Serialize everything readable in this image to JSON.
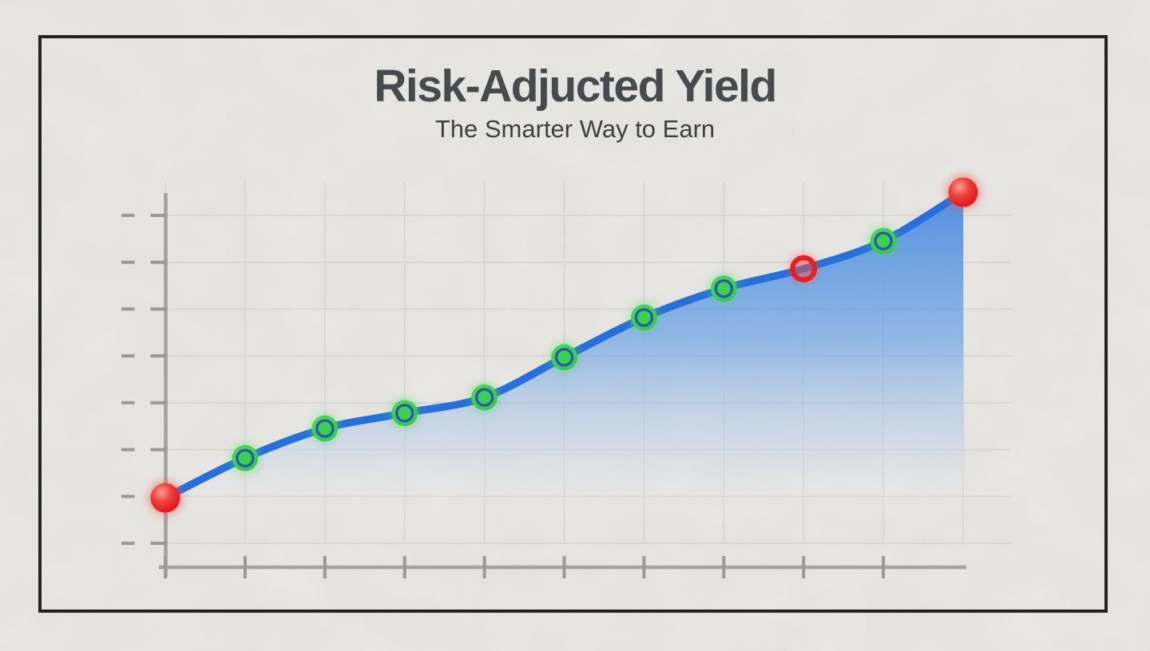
{
  "page": {
    "background_color": "#f3f1ee",
    "frame_color": "#141414"
  },
  "header": {
    "title": "Risk-Adjucted Yield",
    "subtitle": "The Smarter Way to Earn",
    "title_color": "#3a4144",
    "subtitle_color": "#2f3538"
  },
  "chart_data": {
    "type": "area",
    "title": "Risk-Adjucted Yield",
    "subtitle": "The Smarter Way to Earn",
    "x": [
      0,
      1,
      2,
      3,
      4,
      5,
      6,
      7,
      8,
      9,
      10
    ],
    "series": [
      {
        "name": "risk-adjusted-yield",
        "values": [
          18.5,
          29.1,
          37.0,
          41.1,
          45.3,
          56.0,
          66.6,
          74.3,
          79.6,
          87.0,
          100.0
        ]
      }
    ],
    "markers": [
      "red",
      "green",
      "green",
      "green",
      "green",
      "green",
      "green",
      "green",
      "red-ring",
      "green",
      "red"
    ],
    "ylim": [
      0,
      100
    ],
    "xlabel": "",
    "ylabel": "",
    "tick_labels": "none",
    "grid": "on",
    "legend": "none",
    "colors": {
      "line": "#1a69de",
      "area_top": "#3f87e6",
      "marker_green": "#2ed447",
      "marker_green_light": "#52e052",
      "marker_green_ring": "#1e50aa",
      "marker_red": "#ea1118",
      "marker_red_highlight": "#ff9e96",
      "glow_red": "#ff4438",
      "glow_green": "#3ae14e",
      "grid": "#d8d7d2",
      "axis": "#a2a29c",
      "tick": "#98988f"
    }
  }
}
